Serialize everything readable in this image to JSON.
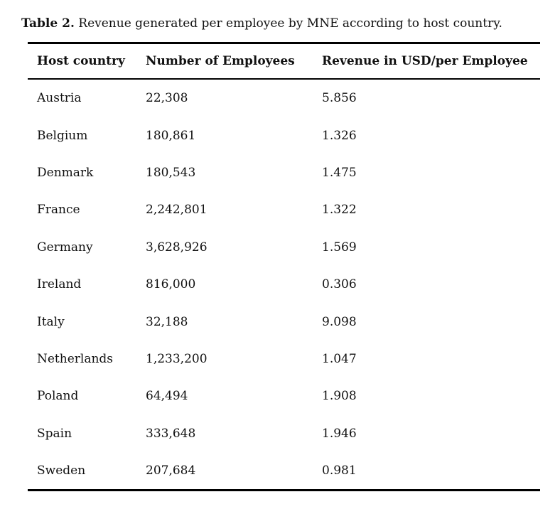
{
  "caption": {
    "label": "Table 2.",
    "text": "Revenue generated per employee by MNE according to host country."
  },
  "table": {
    "columns": [
      "Host country",
      "Number of Employees",
      "Revenue in USD/per Employee"
    ],
    "rows": [
      [
        "Austria",
        "22,308",
        "5.856"
      ],
      [
        "Belgium",
        "180,861",
        "1.326"
      ],
      [
        "Denmark",
        "180,543",
        "1.475"
      ],
      [
        "France",
        "2,242,801",
        "1.322"
      ],
      [
        "Germany",
        "3,628,926",
        "1.569"
      ],
      [
        "Ireland",
        "816,000",
        "0.306"
      ],
      [
        "Italy",
        "32,188",
        "9.098"
      ],
      [
        "Netherlands",
        "1,233,200",
        "1.047"
      ],
      [
        "Poland",
        "64,494",
        "1.908"
      ],
      [
        "Spain",
        "333,648",
        "1.946"
      ],
      [
        "Sweden",
        "207,684",
        "0.981"
      ]
    ]
  },
  "colors": {
    "background": "#ffffff",
    "text": "#111111",
    "rule": "#000000"
  }
}
